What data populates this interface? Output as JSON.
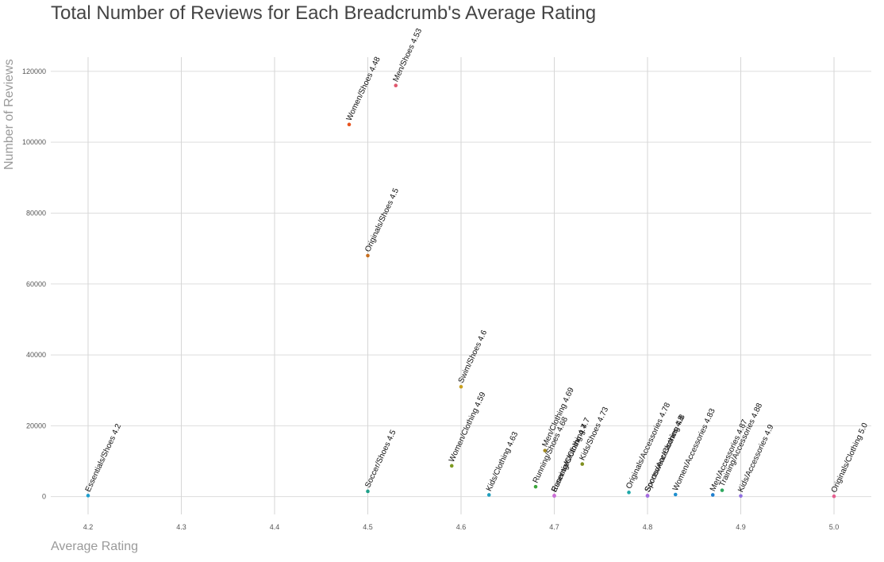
{
  "chart_data": {
    "type": "scatter",
    "title": "Total Number of Reviews for Each Breadcrumb's Average Rating",
    "xlabel": "Average Rating",
    "ylabel": "Number of Reviews",
    "xlim": [
      4.16,
      5.04
    ],
    "ylim": [
      -5000,
      124000
    ],
    "x_ticks": [
      4.2,
      4.3,
      4.4,
      4.5,
      4.6,
      4.7,
      4.8,
      4.9,
      5.0
    ],
    "x_tick_labels": [
      "4.2",
      "4.3",
      "4.4",
      "4.5",
      "4.6",
      "4.7",
      "4.8",
      "4.9",
      "5.0"
    ],
    "y_ticks": [
      0,
      20000,
      40000,
      60000,
      80000,
      100000,
      120000
    ],
    "y_tick_labels": [
      "0",
      "20000",
      "40000",
      "60000",
      "80000",
      "100000",
      "120000"
    ],
    "grid": true,
    "legend": "none",
    "points": [
      {
        "label": "Essentials/Shoes 4.2",
        "x": 4.2,
        "y": 300,
        "color": "#1f9fcf"
      },
      {
        "label": "Women/Shoes 4.48",
        "x": 4.48,
        "y": 105000,
        "color": "#e8541f"
      },
      {
        "label": "Men/Shoes 4.53",
        "x": 4.53,
        "y": 116000,
        "color": "#e0586e"
      },
      {
        "label": "Originals/Shoes 4.5",
        "x": 4.5,
        "y": 68000,
        "color": "#c86f1f"
      },
      {
        "label": "Soccer/Shoes 4.5",
        "x": 4.5,
        "y": 1500,
        "color": "#1fa08a"
      },
      {
        "label": "Swim/Shoes 4.6",
        "x": 4.6,
        "y": 31000,
        "color": "#c9a01f"
      },
      {
        "label": "Women/Clothing 4.59",
        "x": 4.59,
        "y": 8700,
        "color": "#7d9a1f"
      },
      {
        "label": "Kids/Clothing 4.63",
        "x": 4.63,
        "y": 500,
        "color": "#1f9fbf"
      },
      {
        "label": "Men/Clothing 4.69",
        "x": 4.69,
        "y": 13000,
        "color": "#a28a1f"
      },
      {
        "label": "Running/Shoes 4.68",
        "x": 4.68,
        "y": 2800,
        "color": "#3aa53a"
      },
      {
        "label": "Essentials/Clothing 4.7",
        "x": 4.7,
        "y": 300,
        "color": "#e056c8"
      },
      {
        "label": "Running/Clothing 4.7",
        "x": 4.7,
        "y": 200,
        "color": "#c870d8"
      },
      {
        "label": "Kids/Shoes 4.73",
        "x": 4.73,
        "y": 9200,
        "color": "#7f8f1f"
      },
      {
        "label": "Originals/Accessories 4.78",
        "x": 4.78,
        "y": 1200,
        "color": "#1fa8a8"
      },
      {
        "label": "Soccer/Accessories 4.8",
        "x": 4.8,
        "y": 300,
        "color": "#d056d8"
      },
      {
        "label": "Sportswear/Clothing 4.8",
        "x": 4.8,
        "y": 200,
        "color": "#a070e0"
      },
      {
        "label": "Women/Accessories 4.83",
        "x": 4.83,
        "y": 600,
        "color": "#1f8fcf"
      },
      {
        "label": "Men/Accessories 4.87",
        "x": 4.87,
        "y": 500,
        "color": "#1f7fcf"
      },
      {
        "label": "Training/Accessories 4.88",
        "x": 4.88,
        "y": 1800,
        "color": "#2fa85f"
      },
      {
        "label": "Kids/Accessories 4.9",
        "x": 4.9,
        "y": 200,
        "color": "#9070e0"
      },
      {
        "label": "Originals/Clothing 5.0",
        "x": 5.0,
        "y": 100,
        "color": "#e56090"
      }
    ]
  }
}
